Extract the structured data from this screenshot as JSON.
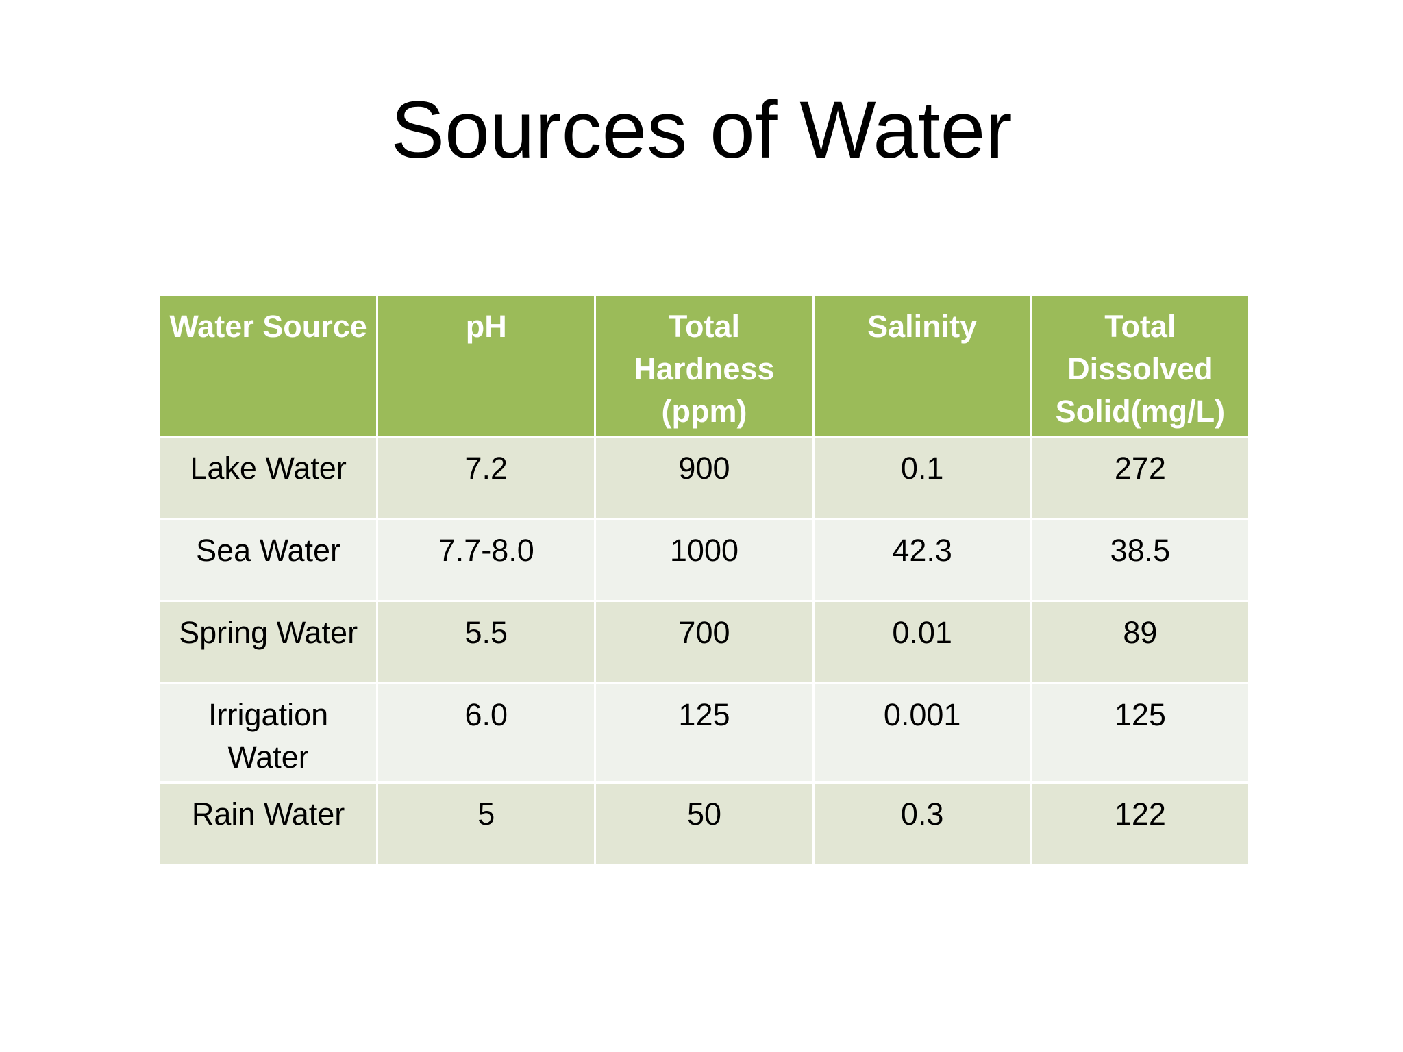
{
  "slide": {
    "title": "Sources of Water"
  },
  "table": {
    "headers": [
      "Water Source",
      "pH",
      "Total Hardness (ppm)",
      "Salinity",
      "Total Dissolved Solid(mg/L)"
    ],
    "rows": [
      [
        "Lake Water",
        "7.2",
        "900",
        "0.1",
        "272"
      ],
      [
        "Sea Water",
        "7.7-8.0",
        "1000",
        "42.3",
        "38.5"
      ],
      [
        "Spring Water",
        "5.5",
        "700",
        "0.01",
        "89"
      ],
      [
        "Irrigation Water",
        "6.0",
        "125",
        "0.001",
        "125"
      ],
      [
        "Rain Water",
        "5",
        "50",
        "0.3",
        "122"
      ]
    ]
  },
  "colors": {
    "header_background": "#9bbb59",
    "header_text": "#ffffff",
    "row_band_dark": "#e2e6d4",
    "row_band_light": "#eff2ec"
  }
}
